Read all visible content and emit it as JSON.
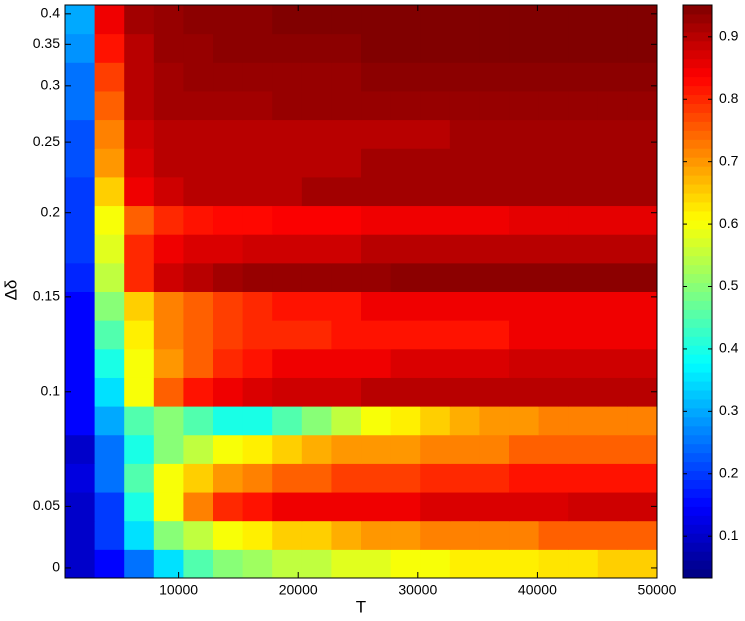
{
  "chart_data": {
    "type": "heatmap",
    "x_label": "T",
    "y_label": "Δδ",
    "colormap": "jet",
    "x": [
      1738,
      4213,
      6688,
      9163,
      11638,
      14113,
      16588,
      19063,
      21538,
      24013,
      26488,
      28963,
      31438,
      33913,
      36388,
      38863,
      41338,
      43813,
      46288,
      48763
    ],
    "y": [
      0.0035,
      0.027,
      0.05,
      0.063,
      0.075,
      0.088,
      0.1,
      0.115,
      0.13,
      0.145,
      0.161,
      0.178,
      0.195,
      0.215,
      0.235,
      0.256,
      0.281,
      0.309,
      0.344,
      0.391
    ],
    "z": [
      [
        0.1,
        0.15,
        0.25,
        0.35,
        0.45,
        0.5,
        0.52,
        0.55,
        0.55,
        0.58,
        0.58,
        0.6,
        0.6,
        0.62,
        0.62,
        0.62,
        0.63,
        0.63,
        0.65,
        0.65
      ],
      [
        0.1,
        0.2,
        0.35,
        0.5,
        0.55,
        0.6,
        0.62,
        0.65,
        0.65,
        0.68,
        0.7,
        0.7,
        0.72,
        0.72,
        0.72,
        0.72,
        0.75,
        0.75,
        0.75,
        0.75
      ],
      [
        0.1,
        0.2,
        0.4,
        0.6,
        0.72,
        0.8,
        0.82,
        0.85,
        0.85,
        0.85,
        0.85,
        0.85,
        0.87,
        0.87,
        0.87,
        0.87,
        0.87,
        0.88,
        0.88,
        0.88
      ],
      [
        0.12,
        0.25,
        0.45,
        0.6,
        0.65,
        0.7,
        0.72,
        0.75,
        0.75,
        0.78,
        0.78,
        0.78,
        0.8,
        0.8,
        0.8,
        0.82,
        0.82,
        0.82,
        0.82,
        0.82
      ],
      [
        0.1,
        0.25,
        0.4,
        0.5,
        0.55,
        0.6,
        0.62,
        0.65,
        0.68,
        0.7,
        0.7,
        0.7,
        0.72,
        0.72,
        0.72,
        0.75,
        0.75,
        0.75,
        0.75,
        0.75
      ],
      [
        0.15,
        0.3,
        0.45,
        0.5,
        0.45,
        0.4,
        0.4,
        0.45,
        0.5,
        0.55,
        0.6,
        0.62,
        0.65,
        0.68,
        0.7,
        0.7,
        0.72,
        0.72,
        0.72,
        0.72
      ],
      [
        0.15,
        0.35,
        0.6,
        0.75,
        0.82,
        0.85,
        0.87,
        0.88,
        0.88,
        0.88,
        0.9,
        0.9,
        0.9,
        0.9,
        0.9,
        0.9,
        0.9,
        0.9,
        0.9,
        0.9
      ],
      [
        0.15,
        0.4,
        0.6,
        0.7,
        0.75,
        0.8,
        0.82,
        0.85,
        0.85,
        0.85,
        0.85,
        0.87,
        0.87,
        0.87,
        0.87,
        0.88,
        0.88,
        0.88,
        0.88,
        0.88
      ],
      [
        0.15,
        0.45,
        0.62,
        0.72,
        0.75,
        0.78,
        0.8,
        0.8,
        0.8,
        0.82,
        0.82,
        0.82,
        0.82,
        0.82,
        0.82,
        0.85,
        0.85,
        0.85,
        0.85,
        0.85
      ],
      [
        0.15,
        0.5,
        0.65,
        0.72,
        0.75,
        0.78,
        0.8,
        0.82,
        0.82,
        0.82,
        0.85,
        0.85,
        0.85,
        0.85,
        0.85,
        0.85,
        0.85,
        0.85,
        0.85,
        0.85
      ],
      [
        0.18,
        0.55,
        0.8,
        0.88,
        0.9,
        0.92,
        0.93,
        0.93,
        0.93,
        0.93,
        0.93,
        0.94,
        0.94,
        0.94,
        0.94,
        0.94,
        0.94,
        0.94,
        0.94,
        0.94
      ],
      [
        0.2,
        0.58,
        0.8,
        0.85,
        0.87,
        0.87,
        0.88,
        0.88,
        0.88,
        0.88,
        0.9,
        0.9,
        0.9,
        0.9,
        0.9,
        0.9,
        0.9,
        0.9,
        0.9,
        0.9
      ],
      [
        0.2,
        0.6,
        0.75,
        0.8,
        0.82,
        0.83,
        0.83,
        0.84,
        0.84,
        0.84,
        0.85,
        0.85,
        0.85,
        0.85,
        0.85,
        0.86,
        0.86,
        0.86,
        0.86,
        0.86
      ],
      [
        0.2,
        0.65,
        0.85,
        0.88,
        0.9,
        0.9,
        0.9,
        0.9,
        0.92,
        0.92,
        0.92,
        0.92,
        0.92,
        0.92,
        0.92,
        0.92,
        0.92,
        0.92,
        0.92,
        0.92
      ],
      [
        0.22,
        0.7,
        0.87,
        0.9,
        0.9,
        0.9,
        0.9,
        0.9,
        0.9,
        0.9,
        0.92,
        0.92,
        0.92,
        0.92,
        0.92,
        0.92,
        0.92,
        0.92,
        0.92,
        0.92
      ],
      [
        0.22,
        0.72,
        0.88,
        0.9,
        0.9,
        0.9,
        0.9,
        0.9,
        0.9,
        0.9,
        0.9,
        0.9,
        0.9,
        0.92,
        0.92,
        0.92,
        0.92,
        0.92,
        0.92,
        0.92
      ],
      [
        0.25,
        0.75,
        0.9,
        0.92,
        0.92,
        0.92,
        0.92,
        0.93,
        0.93,
        0.93,
        0.93,
        0.93,
        0.93,
        0.93,
        0.93,
        0.93,
        0.93,
        0.93,
        0.93,
        0.93
      ],
      [
        0.25,
        0.78,
        0.9,
        0.92,
        0.93,
        0.93,
        0.93,
        0.93,
        0.93,
        0.93,
        0.94,
        0.94,
        0.94,
        0.94,
        0.94,
        0.94,
        0.94,
        0.94,
        0.94,
        0.94
      ],
      [
        0.28,
        0.82,
        0.9,
        0.93,
        0.93,
        0.94,
        0.94,
        0.94,
        0.94,
        0.94,
        0.95,
        0.95,
        0.95,
        0.95,
        0.95,
        0.95,
        0.95,
        0.95,
        0.95,
        0.95
      ],
      [
        0.3,
        0.85,
        0.92,
        0.93,
        0.94,
        0.94,
        0.94,
        0.95,
        0.95,
        0.95,
        0.95,
        0.95,
        0.95,
        0.95,
        0.95,
        0.95,
        0.95,
        0.95,
        0.95,
        0.95
      ]
    ],
    "xlim": [
      500,
      50000
    ],
    "xticks": [
      10000,
      20000,
      30000,
      40000,
      50000
    ],
    "yticks": [
      0,
      0.05,
      0.1,
      0.15,
      0.2,
      0.25,
      0.3,
      0.35,
      0.4
    ],
    "clim": [
      0.033,
      0.951
    ],
    "cticks": [
      0.1,
      0.2,
      0.3,
      0.4,
      0.5,
      0.6,
      0.7,
      0.8,
      0.9
    ]
  }
}
